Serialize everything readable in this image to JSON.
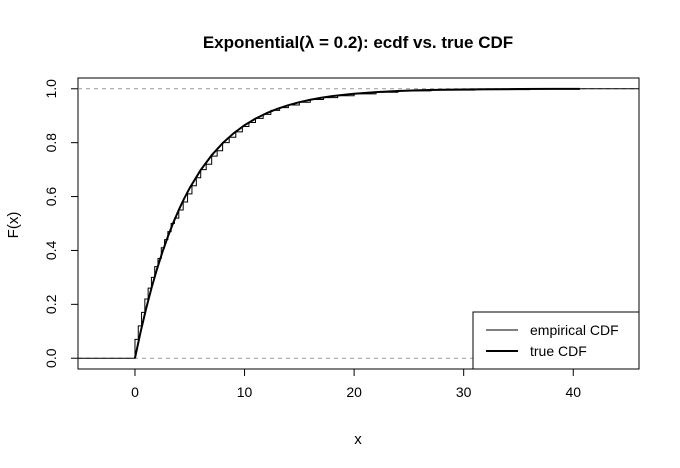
{
  "chart_data": {
    "type": "line",
    "title": "Exponential(λ = 0.2): ecdf vs. true CDF",
    "xlabel": "x",
    "ylabel": "F(x)",
    "xlim": [
      -5.2,
      46.0
    ],
    "ylim": [
      -0.04,
      1.04
    ],
    "x_ticks": [
      0,
      10,
      20,
      30,
      40
    ],
    "x_tick_labels": [
      "0",
      "10",
      "20",
      "30",
      "40"
    ],
    "y_ticks": [
      0.0,
      0.2,
      0.4,
      0.6,
      0.8,
      1.0
    ],
    "y_tick_labels": [
      "0.0",
      "0.2",
      "0.4",
      "0.6",
      "0.8",
      "1.0"
    ],
    "reference_lines": [
      0,
      1
    ],
    "grid": false,
    "legend_position": "bottom-right",
    "series": [
      {
        "name": "empirical CDF",
        "style": "step",
        "line_width": 1,
        "color": "#000000",
        "x": [
          0.0,
          0.3,
          0.6,
          0.9,
          1.2,
          1.5,
          1.8,
          2.1,
          2.4,
          2.7,
          3.0,
          3.3,
          3.6,
          4.0,
          4.4,
          4.8,
          5.2,
          5.6,
          6.0,
          6.5,
          7.0,
          7.5,
          8.0,
          8.6,
          9.2,
          9.8,
          10.4,
          11.0,
          11.7,
          12.4,
          13.2,
          14.0,
          15.0,
          16.0,
          17.2,
          18.5,
          20.0,
          22.0,
          24.0,
          27.0,
          31.0,
          36.0,
          40.6
        ],
        "y": [
          0.07,
          0.12,
          0.17,
          0.22,
          0.26,
          0.3,
          0.34,
          0.37,
          0.41,
          0.44,
          0.47,
          0.5,
          0.52,
          0.55,
          0.58,
          0.61,
          0.64,
          0.67,
          0.7,
          0.72,
          0.75,
          0.77,
          0.8,
          0.82,
          0.84,
          0.86,
          0.875,
          0.89,
          0.905,
          0.92,
          0.93,
          0.94,
          0.95,
          0.96,
          0.967,
          0.974,
          0.981,
          0.987,
          0.992,
          0.995,
          0.997,
          0.999,
          1.0
        ]
      },
      {
        "name": "true CDF",
        "style": "line",
        "line_width": 2,
        "color": "#000000",
        "x": [
          0,
          0.5,
          1,
          1.5,
          2,
          2.5,
          3,
          3.5,
          4,
          4.5,
          5,
          6,
          7,
          8,
          9,
          10,
          11,
          12,
          13,
          14,
          15,
          16,
          17,
          18,
          19,
          20,
          22,
          24,
          26,
          28,
          30,
          32,
          35,
          38,
          40.6
        ],
        "y": [
          0.0,
          0.0952,
          0.1813,
          0.2592,
          0.3297,
          0.3935,
          0.4512,
          0.5034,
          0.5507,
          0.5934,
          0.6321,
          0.6988,
          0.7534,
          0.7981,
          0.8347,
          0.8647,
          0.8892,
          0.9093,
          0.9257,
          0.9392,
          0.9502,
          0.9592,
          0.9666,
          0.9727,
          0.9776,
          0.9817,
          0.9877,
          0.9918,
          0.9945,
          0.9963,
          0.9975,
          0.9983,
          0.9991,
          0.9995,
          0.9997
        ]
      }
    ]
  }
}
